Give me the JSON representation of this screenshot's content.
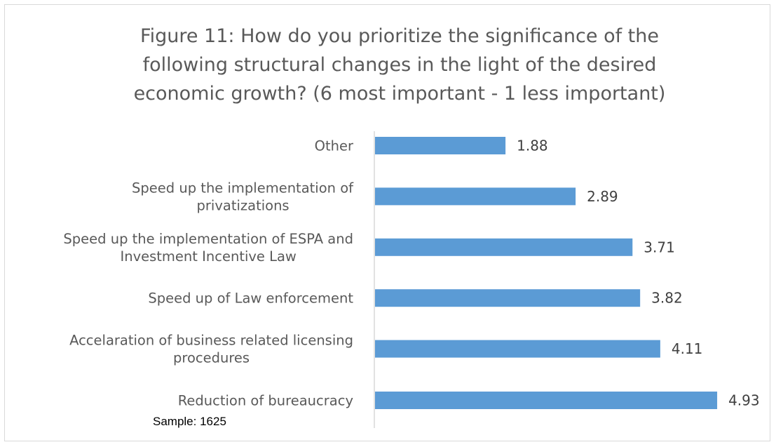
{
  "chart_data": {
    "type": "bar",
    "orientation": "horizontal",
    "title_lines": [
      "Figure 11:  How do you prioritize the significance of the",
      "following structural changes in the light of the desired",
      "economic growth? (6 most important - 1 less important)"
    ],
    "categories": [
      {
        "lines": [
          "Other"
        ]
      },
      {
        "lines": [
          "Speed up the implementation of",
          "privatizations"
        ]
      },
      {
        "lines": [
          "Speed up the implementation of ESPA and",
          "Investment Incentive Law"
        ]
      },
      {
        "lines": [
          "Speed up of Law enforcement"
        ]
      },
      {
        "lines": [
          "Accelaration of business related licensing",
          "procedures"
        ]
      },
      {
        "lines": [
          "Reduction of bureaucracy"
        ]
      }
    ],
    "values": [
      1.88,
      2.89,
      3.71,
      3.82,
      4.11,
      4.93
    ],
    "value_labels": [
      "1.88",
      "2.89",
      "3.71",
      "3.82",
      "4.11",
      "4.93"
    ],
    "xlim": [
      0,
      6
    ],
    "bar_color": "#5b9bd5",
    "grid": false,
    "legend": "none"
  },
  "sample_label": "Sample: 1625"
}
